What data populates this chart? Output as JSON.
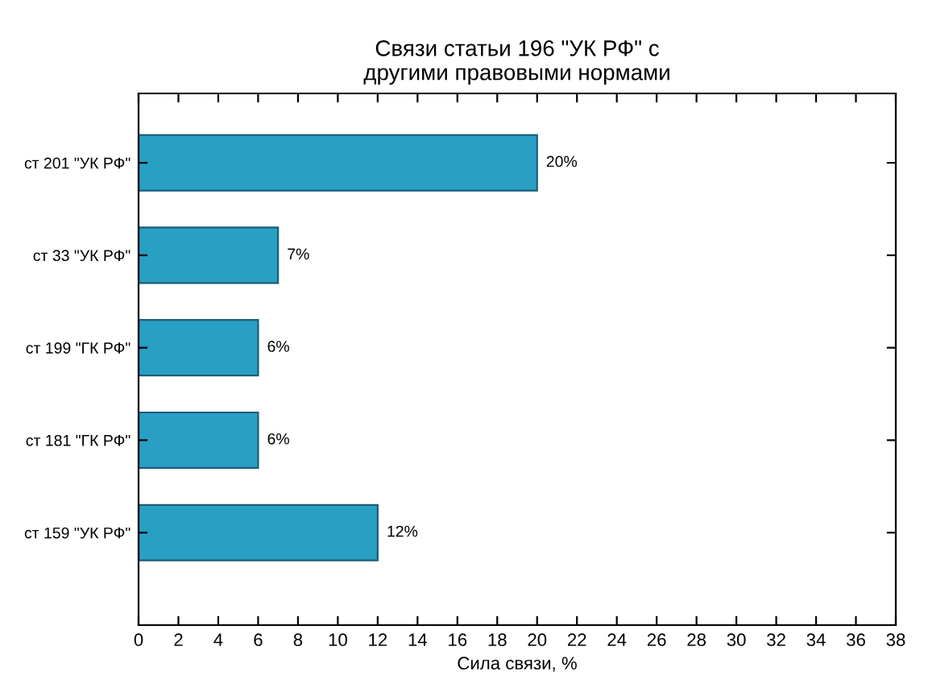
{
  "chart_data": {
    "type": "bar",
    "orientation": "horizontal",
    "title": "Связи статьи 196 \"УК РФ\" с\nдругими правовыми нормами",
    "xlabel": "Сила связи, %",
    "categories": [
      "ст 201 \"УК РФ\"",
      "ст 33 \"УК РФ\"",
      "ст 199 \"ГК РФ\"",
      "ст 181 \"ГК РФ\"",
      "ст 159 \"УК РФ\""
    ],
    "values": [
      20,
      7,
      6,
      6,
      12
    ],
    "value_labels": [
      "20%",
      "7%",
      "6%",
      "6%",
      "12%"
    ],
    "color": "#2a9fc4",
    "xlim": [
      0,
      38
    ],
    "xticks": [
      0,
      2,
      4,
      6,
      8,
      10,
      12,
      14,
      16,
      18,
      20,
      22,
      24,
      26,
      28,
      30,
      32,
      34,
      36,
      38
    ],
    "grid": false,
    "legend": false
  }
}
